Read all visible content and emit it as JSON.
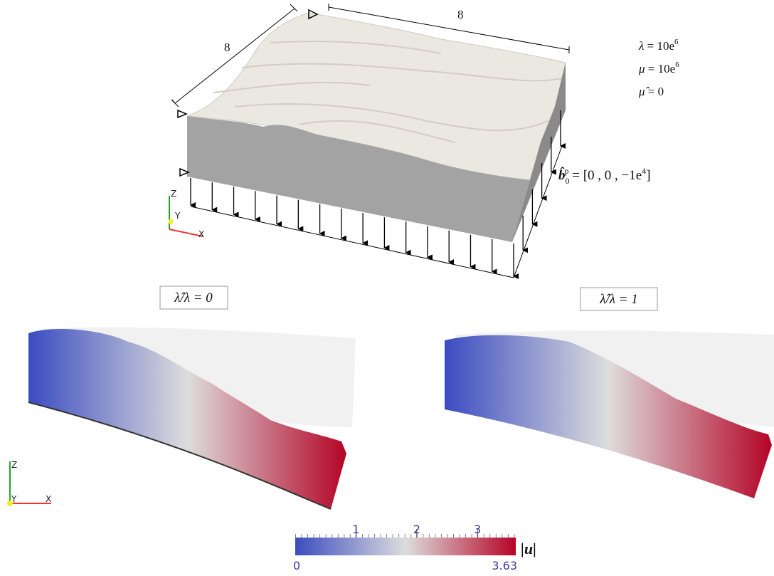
{
  "dimensions": {
    "depth": "8",
    "width": "8"
  },
  "material": [
    {
      "symbol": "λ",
      "relation": " = 10e",
      "exponent": "6"
    },
    {
      "symbol": "μ",
      "relation": " = 10e",
      "exponent": "6"
    },
    {
      "symbol": "μ̂",
      "relation": " = 0"
    }
  ],
  "load": {
    "symbol": "b̂",
    "sub": "0",
    "sup": "p",
    "relation": " = [0 , 0 , −1e",
    "exponent": "4",
    "close": "]"
  },
  "axes_top": {
    "z": "Z",
    "y": "Y",
    "x": "X"
  },
  "axes_bottom": {
    "z": "Z",
    "y": "Y",
    "x": "X"
  },
  "panels": [
    {
      "label": "λ̂/λ = 0"
    },
    {
      "label": "λ̂/λ = 1"
    }
  ],
  "colorbar": {
    "label": "|u|",
    "min": 0,
    "max": 3.63,
    "ticks": [
      1,
      2,
      3
    ]
  }
}
